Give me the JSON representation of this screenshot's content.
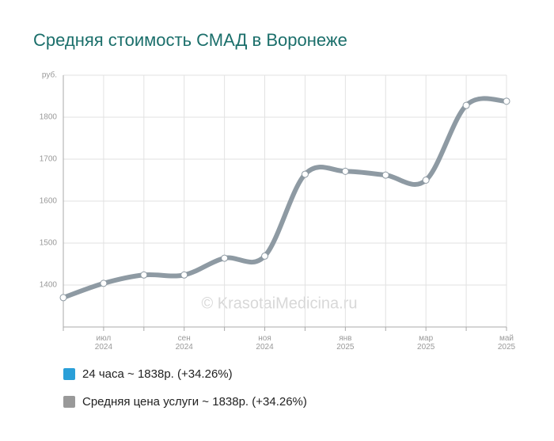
{
  "chart_data": {
    "type": "line",
    "title": "Средняя стоимость СМАД в Воронеже",
    "watermark": "© KrasotaiMedicina.ru",
    "categories": [
      null,
      "июл 2024",
      null,
      "сен 2024",
      null,
      "ноя 2024",
      null,
      "янв 2025",
      null,
      "мар 2025",
      null,
      "май 2025"
    ],
    "series": [
      {
        "name": "24 часа ~ 1838р. (+34.26%)",
        "color": "#2a9fd8",
        "values": [
          1370,
          1404,
          1424,
          1424,
          1464,
          1469,
          1664,
          1671,
          1662,
          1650,
          1828,
          1838
        ]
      },
      {
        "name": "Средняя цена услуги ~ 1838р. (+34.26%)",
        "color": "#8e9aa3",
        "values": [
          1370,
          1404,
          1424,
          1424,
          1464,
          1469,
          1664,
          1671,
          1662,
          1650,
          1828,
          1838
        ]
      }
    ],
    "ylim": [
      1300,
      1900
    ],
    "yticks": [
      1400,
      1500,
      1600,
      1700,
      1800,
      {
        "value": 1900,
        "label": "руб."
      }
    ],
    "grid": true
  }
}
